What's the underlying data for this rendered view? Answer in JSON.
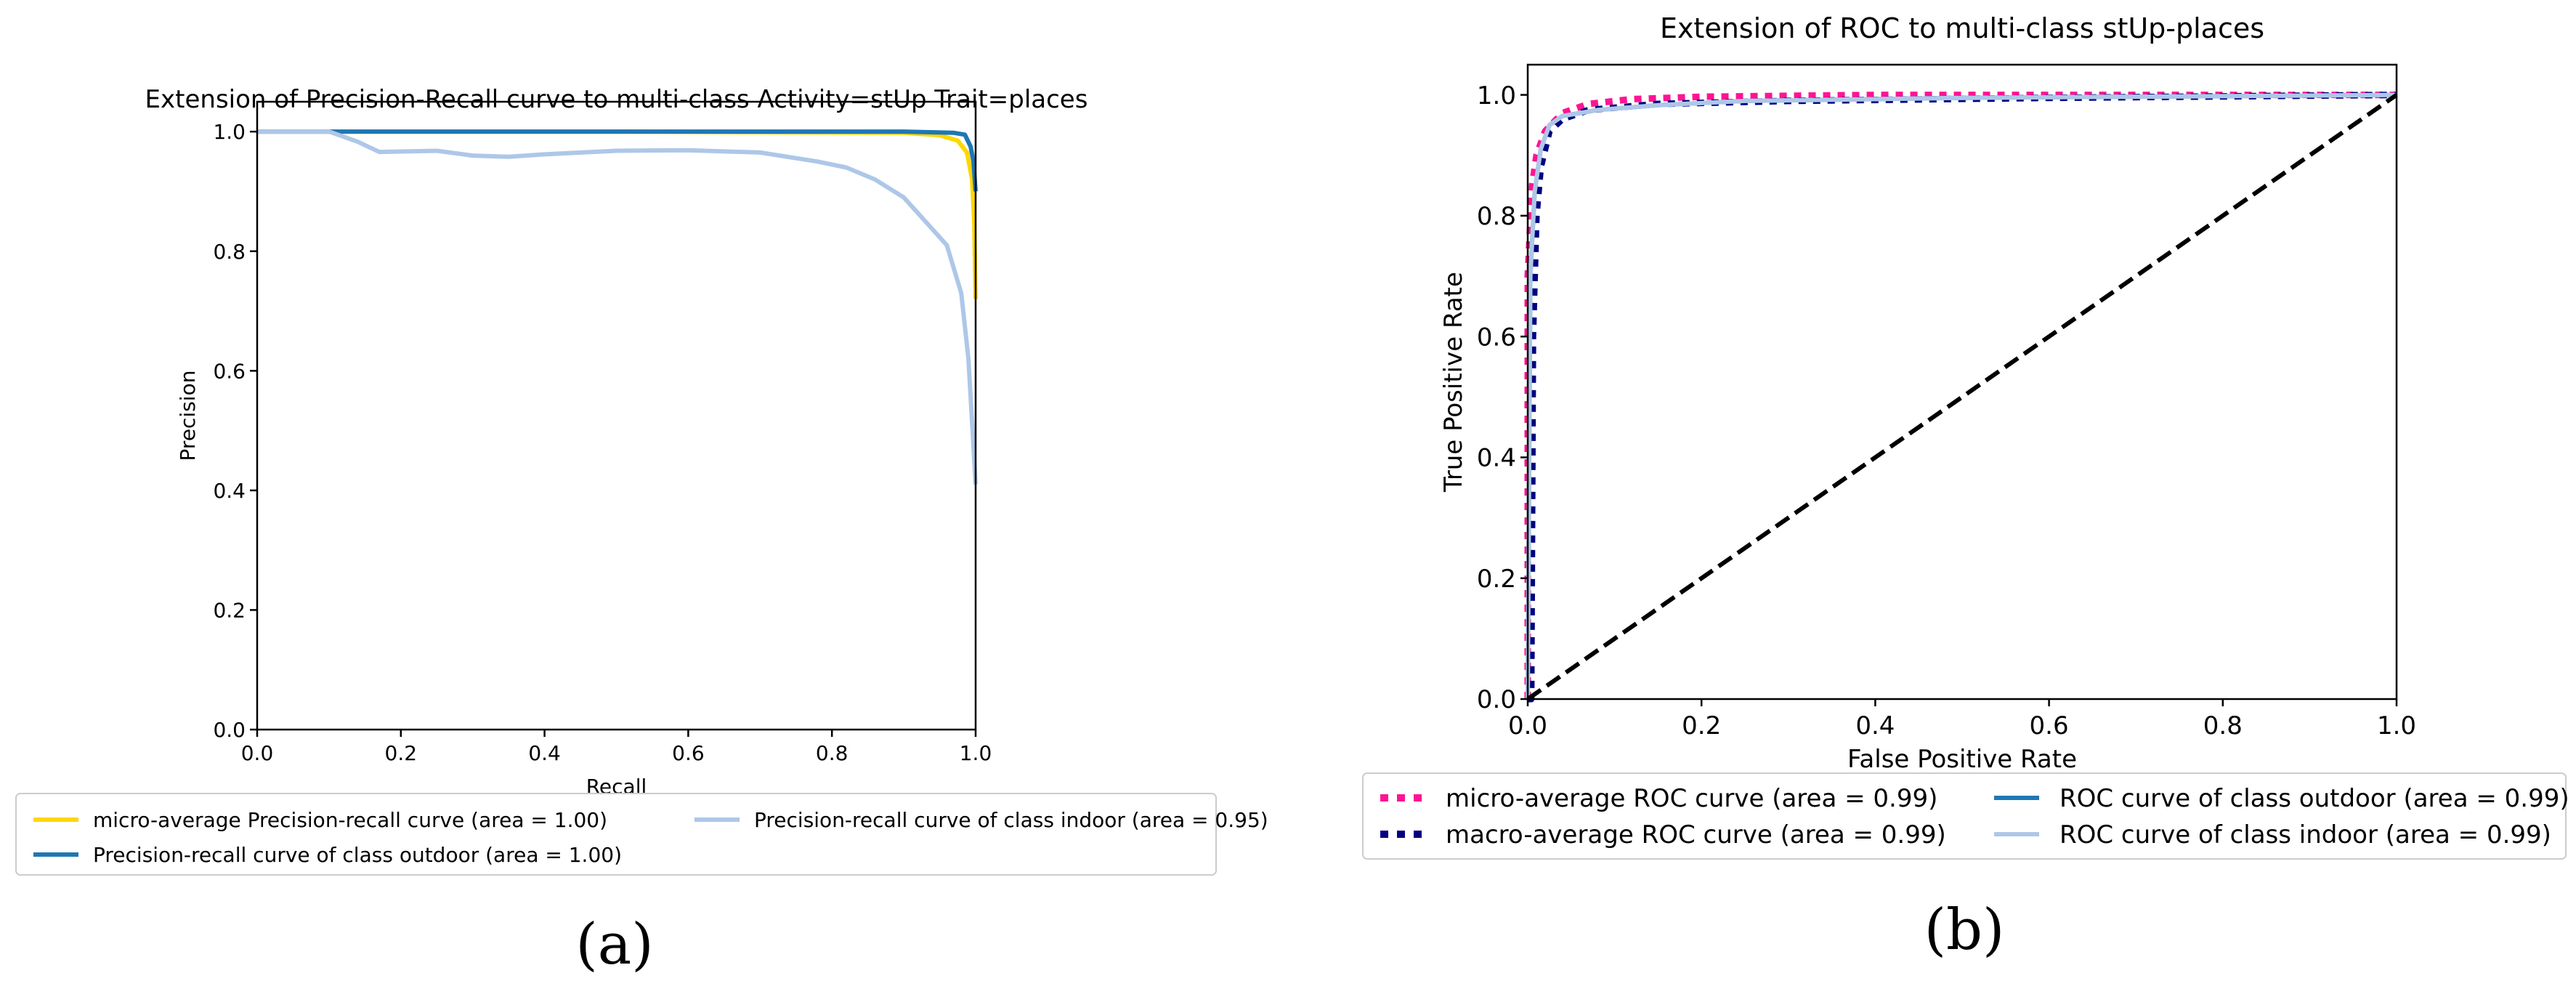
{
  "chart_data": [
    {
      "type": "line",
      "panel_label": "(a)",
      "title": "Extension of Precision-Recall curve to multi-class Activity=stUp Trait=places",
      "xlabel": "Recall",
      "ylabel": "Precision",
      "xlim": [
        0.0,
        1.0
      ],
      "ylim": [
        0.0,
        1.05
      ],
      "xticks": [
        "0.0",
        "0.2",
        "0.4",
        "0.6",
        "0.8",
        "1.0"
      ],
      "yticks": [
        "0.0",
        "0.2",
        "0.4",
        "0.6",
        "0.8",
        "1.0"
      ],
      "grid": false,
      "legend_position": "below",
      "series": [
        {
          "name": "micro-average Precision-recall curve (area = 1.00)",
          "color": "#ffd700",
          "dash": "solid",
          "points": [
            [
              0,
              1.0
            ],
            [
              0.1,
              1.0
            ],
            [
              0.5,
              1.0
            ],
            [
              0.9,
              0.998
            ],
            [
              0.95,
              0.994
            ],
            [
              0.975,
              0.985
            ],
            [
              0.988,
              0.965
            ],
            [
              0.995,
              0.92
            ],
            [
              0.998,
              0.85
            ],
            [
              1.0,
              0.72
            ]
          ]
        },
        {
          "name": "Precision-recall curve of class outdoor (area = 1.00)",
          "color": "#1f77b4",
          "dash": "solid",
          "points": [
            [
              0,
              1.0
            ],
            [
              0.5,
              1.0
            ],
            [
              0.9,
              1.0
            ],
            [
              0.97,
              0.998
            ],
            [
              0.985,
              0.995
            ],
            [
              0.993,
              0.975
            ],
            [
              0.997,
              0.95
            ],
            [
              1.0,
              0.9
            ]
          ]
        },
        {
          "name": "Precision-recall curve of class indoor (area = 0.95)",
          "color": "#aec7e8",
          "dash": "solid",
          "points": [
            [
              0,
              1.0
            ],
            [
              0.1,
              1.0
            ],
            [
              0.14,
              0.983
            ],
            [
              0.17,
              0.966
            ],
            [
              0.25,
              0.968
            ],
            [
              0.3,
              0.96
            ],
            [
              0.35,
              0.958
            ],
            [
              0.4,
              0.962
            ],
            [
              0.5,
              0.968
            ],
            [
              0.6,
              0.969
            ],
            [
              0.7,
              0.965
            ],
            [
              0.78,
              0.95
            ],
            [
              0.82,
              0.94
            ],
            [
              0.86,
              0.92
            ],
            [
              0.9,
              0.89
            ],
            [
              0.93,
              0.85
            ],
            [
              0.96,
              0.81
            ],
            [
              0.98,
              0.73
            ],
            [
              0.99,
              0.62
            ],
            [
              1.0,
              0.41
            ]
          ]
        }
      ]
    },
    {
      "type": "line",
      "panel_label": "(b)",
      "title": "Extension of ROC to multi-class stUp-places",
      "xlabel": "False Positive Rate",
      "ylabel": "True Positive Rate",
      "xlim": [
        0.0,
        1.0
      ],
      "ylim": [
        0.0,
        1.05
      ],
      "xticks": [
        "0.0",
        "0.2",
        "0.4",
        "0.6",
        "0.8",
        "1.0"
      ],
      "yticks": [
        "0.0",
        "0.2",
        "0.4",
        "0.6",
        "0.8",
        "1.0"
      ],
      "grid": false,
      "legend_position": "below",
      "series": [
        {
          "name": "micro-average ROC curve (area = 0.99)",
          "color": "#ff1493",
          "dash": "dotted",
          "points": [
            [
              0,
              0
            ],
            [
              0,
              0.7
            ],
            [
              0.005,
              0.85
            ],
            [
              0.01,
              0.9
            ],
            [
              0.02,
              0.94
            ],
            [
              0.04,
              0.97
            ],
            [
              0.07,
              0.985
            ],
            [
              0.12,
              0.993
            ],
            [
              0.2,
              0.997
            ],
            [
              0.4,
              1.0
            ],
            [
              1.0,
              1.0
            ]
          ]
        },
        {
          "name": "macro-average ROC curve (area = 0.99)",
          "color": "#000080",
          "dash": "dotted",
          "points": [
            [
              0,
              0
            ],
            [
              0.004,
              0.0
            ],
            [
              0.006,
              0.6
            ],
            [
              0.01,
              0.8
            ],
            [
              0.015,
              0.88
            ],
            [
              0.025,
              0.94
            ],
            [
              0.04,
              0.96
            ],
            [
              0.07,
              0.975
            ],
            [
              0.15,
              0.985
            ],
            [
              0.3,
              0.99
            ],
            [
              0.6,
              0.995
            ],
            [
              1.0,
              1.0
            ]
          ]
        },
        {
          "name": "ROC curve of class outdoor (area = 0.99)",
          "color": "#1f77b4",
          "dash": "solid",
          "points": [
            [
              0,
              0
            ],
            [
              0.003,
              0.7
            ],
            [
              0.008,
              0.84
            ],
            [
              0.015,
              0.91
            ],
            [
              0.025,
              0.95
            ],
            [
              0.04,
              0.965
            ],
            [
              0.08,
              0.975
            ],
            [
              0.15,
              0.983
            ],
            [
              0.25,
              0.99
            ],
            [
              0.5,
              0.995
            ],
            [
              1.0,
              1.0
            ]
          ]
        },
        {
          "name": "ROC curve of class indoor (area = 0.99)",
          "color": "#aec7e8",
          "dash": "solid",
          "points": [
            [
              0,
              0
            ],
            [
              0.003,
              0.7
            ],
            [
              0.008,
              0.84
            ],
            [
              0.015,
              0.91
            ],
            [
              0.025,
              0.95
            ],
            [
              0.04,
              0.965
            ],
            [
              0.08,
              0.975
            ],
            [
              0.15,
              0.983
            ],
            [
              0.25,
              0.99
            ],
            [
              0.5,
              0.995
            ],
            [
              1.0,
              1.0
            ]
          ]
        },
        {
          "name": "",
          "color": "#000000",
          "dash": "dashed",
          "legend": false,
          "points": [
            [
              0,
              0
            ],
            [
              1,
              1
            ]
          ]
        }
      ]
    }
  ]
}
